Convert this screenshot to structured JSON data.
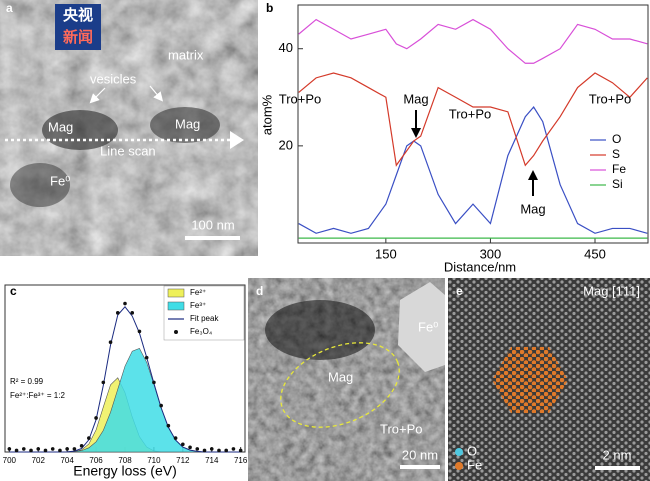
{
  "image_a": {
    "label": "a",
    "watermark": [
      "央视",
      "新闻"
    ],
    "annotations": [
      "matrix",
      "vesicles",
      "Mag",
      "Mag",
      "Line scan",
      "Fe⁰"
    ],
    "scale_bar": "100 nm"
  },
  "image_d": {
    "label": "d",
    "annotations": [
      "Mag",
      "Fe⁰",
      "Tro+Po"
    ],
    "scale_bar": "20 nm"
  },
  "image_e": {
    "label": "e",
    "title": "Mag [1̄11]",
    "legend": [
      "O",
      "Fe"
    ],
    "scale_bar": "2 nm"
  },
  "chart_data": [
    {
      "type": "line",
      "panel_label": "b",
      "y_label": "atom%",
      "x_label": "Distance/nm",
      "x": [
        25,
        50,
        75,
        100,
        125,
        150,
        165,
        180,
        190,
        200,
        225,
        250,
        275,
        300,
        325,
        350,
        362,
        375,
        400,
        425,
        450,
        475,
        500,
        525
      ],
      "xlim": [
        24,
        526
      ],
      "ylim": [
        0,
        49
      ],
      "xticks": [
        150,
        300,
        450
      ],
      "yticks": [
        20,
        40
      ],
      "legend": "right",
      "annotations": [
        "Tro+Po",
        "Mag",
        "Tro+Po",
        "Tro+Po",
        "Mag"
      ],
      "series": [
        {
          "name": "O",
          "color": "#3a4fc4",
          "style": "line",
          "values": [
            4,
            2,
            3,
            2,
            3,
            8,
            14,
            20,
            21,
            20,
            10,
            4,
            8,
            4,
            18,
            26,
            28,
            25,
            12,
            4,
            2,
            3,
            3,
            2
          ]
        },
        {
          "name": "S",
          "color": "#d43a2a",
          "style": "line",
          "values": [
            31,
            34,
            35,
            34,
            32,
            30,
            16,
            19,
            21,
            22,
            32,
            30,
            28,
            28,
            27,
            16,
            18,
            21,
            26,
            32,
            35,
            33,
            30,
            34
          ]
        },
        {
          "name": "Fe",
          "color": "#d84fd8",
          "style": "line",
          "values": [
            43,
            46,
            44,
            42,
            43,
            44,
            41,
            40,
            41,
            42,
            45,
            44,
            46,
            44,
            40,
            37,
            37,
            38,
            40,
            45,
            44,
            42,
            42,
            41
          ]
        },
        {
          "name": "Si",
          "color": "#3cb84a",
          "style": "line",
          "values": [
            1,
            1,
            1,
            1,
            1,
            1,
            1,
            1,
            1,
            1,
            1,
            1,
            1,
            1,
            1,
            1,
            1,
            1,
            1,
            1,
            1,
            1,
            1,
            1
          ]
        }
      ]
    },
    {
      "type": "line",
      "panel_label": "c",
      "x_label": "Energy loss (eV)",
      "x": [
        700,
        700.5,
        701,
        701.5,
        702,
        702.5,
        703,
        703.5,
        704,
        704.5,
        705,
        705.5,
        706,
        706.5,
        707,
        707.5,
        708,
        708.5,
        709,
        709.5,
        710,
        710.5,
        711,
        711.5,
        712,
        712.5,
        713,
        713.5,
        714,
        714.5,
        715,
        715.5,
        716
      ],
      "xlim": [
        699.7,
        716.3
      ],
      "ylim": [
        0,
        1.08
      ],
      "xticks": [
        700,
        702,
        704,
        706,
        708,
        710,
        712,
        714,
        716
      ],
      "legend": "top-right",
      "annotations": [
        "R² = 0.99",
        "Fe²⁺:Fe³⁺ = 1:2"
      ],
      "series": [
        {
          "name": "Fe²⁺",
          "color": "#eef05a",
          "style": "area",
          "values": [
            0,
            0,
            0,
            0,
            0,
            0,
            0,
            0,
            0,
            0.003,
            0.014,
            0.052,
            0.143,
            0.291,
            0.435,
            0.48,
            0.384,
            0.227,
            0.099,
            0.032,
            0.007,
            0.001,
            0,
            0,
            0,
            0,
            0,
            0,
            0,
            0,
            0,
            0,
            0
          ]
        },
        {
          "name": "Fe³⁺",
          "color": "#3fdde6",
          "style": "area",
          "values": [
            0,
            0,
            0,
            0,
            0,
            0,
            0,
            0,
            0.001,
            0.003,
            0.009,
            0.027,
            0.066,
            0.14,
            0.257,
            0.406,
            0.555,
            0.652,
            0.67,
            0.58,
            0.437,
            0.285,
            0.16,
            0.077,
            0.032,
            0.012,
            0.004,
            0,
            0,
            0,
            0,
            0,
            0
          ]
        },
        {
          "name": "Fit peak",
          "color": "#1a2a80",
          "style": "line",
          "values": [
            0,
            0,
            0,
            0,
            0,
            0,
            0,
            0,
            0.001,
            0.006,
            0.023,
            0.079,
            0.209,
            0.431,
            0.692,
            0.886,
            0.939,
            0.879,
            0.769,
            0.612,
            0.444,
            0.286,
            0.16,
            0.077,
            0.032,
            0.012,
            0.004,
            0,
            0,
            0,
            0,
            0,
            0
          ]
        },
        {
          "name": "Fe₃O₄",
          "color": "#111111",
          "style": "scatter",
          "values": [
            0.02,
            0.01,
            0.02,
            0.01,
            0.02,
            0.01,
            0.02,
            0.01,
            0.02,
            0.02,
            0.04,
            0.09,
            0.22,
            0.45,
            0.71,
            0.9,
            0.96,
            0.9,
            0.78,
            0.61,
            0.45,
            0.3,
            0.17,
            0.09,
            0.05,
            0.03,
            0.02,
            0.01,
            0.02,
            0.01,
            0.01,
            0.02,
            0.01
          ]
        }
      ]
    }
  ]
}
